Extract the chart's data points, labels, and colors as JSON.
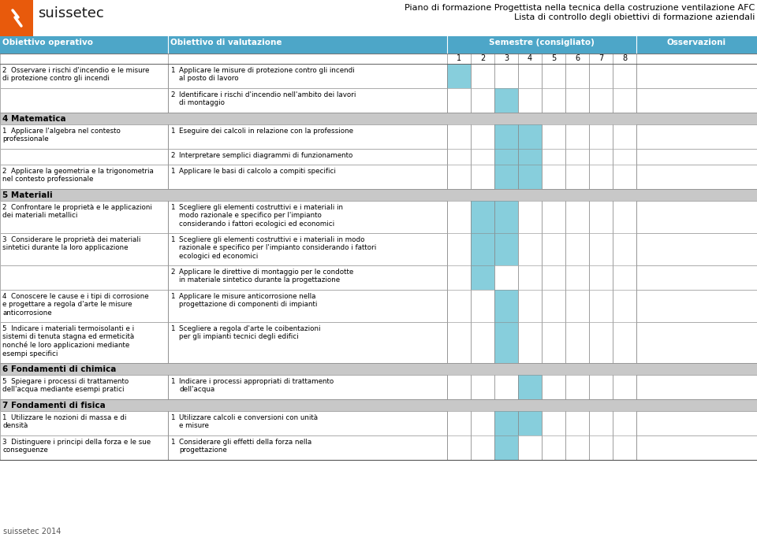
{
  "title_line1": "Piano di formazione Progettista nella tecnica della costruzione ventilazione AFC",
  "title_line2": "Lista di controllo degli obiettivi di formazione aziendali",
  "logo_text": "suissetec",
  "header_bg": "#4DA6C8",
  "section_bg": "#C8C8C8",
  "highlight_color": "#87CEDC",
  "white": "#FFFFFF",
  "footer_text": "suissetec 2014",
  "semester_nums": [
    "1",
    "2",
    "3",
    "4",
    "5",
    "6",
    "7",
    "8"
  ],
  "sections": [
    {
      "type": "row",
      "op_text": "2  Osservare i rischi d'incendio e le misure\ndi protezione contro gli incendi",
      "val_num": "1",
      "val_text": "Applicare le misure di protezione contro gli incendi\nal posto di lavoro",
      "highlighted_semesters": [
        1
      ],
      "n_lines": 2
    },
    {
      "type": "row",
      "op_text": "",
      "val_num": "2",
      "val_text": "Identificare i rischi d'incendio nell'ambito dei lavori\ndi montaggio",
      "highlighted_semesters": [
        3
      ],
      "n_lines": 2
    },
    {
      "type": "section_header",
      "text": "4 Matematica"
    },
    {
      "type": "row",
      "op_text": "1  Applicare l'algebra nel contesto\nprofessionale",
      "val_num": "1",
      "val_text": "Eseguire dei calcoli in relazione con la professione",
      "highlighted_semesters": [
        3,
        4
      ],
      "n_lines": 2
    },
    {
      "type": "row",
      "op_text": "",
      "val_num": "2",
      "val_text": "Interpretare semplici diagrammi di funzionamento",
      "highlighted_semesters": [
        3,
        4
      ],
      "n_lines": 1
    },
    {
      "type": "row",
      "op_text": "2  Applicare la geometria e la trigonometria\nnel contesto professionale",
      "val_num": "1",
      "val_text": "Applicare le basi di calcolo a compiti specifici",
      "highlighted_semesters": [
        3,
        4
      ],
      "n_lines": 2
    },
    {
      "type": "section_header",
      "text": "5 Materiali"
    },
    {
      "type": "row",
      "op_text": "2  Confrontare le proprietà e le applicazioni\ndei materiali metallici",
      "val_num": "1",
      "val_text": "Scegliere gli elementi costruttivi e i materiali in\nmodo razionale e specifico per l'impianto\nconsiderando i fattori ecologici ed economici",
      "highlighted_semesters": [
        2,
        3
      ],
      "n_lines": 3
    },
    {
      "type": "row",
      "op_text": "3  Considerare le proprietà dei materiali\nsintetici durante la loro applicazione",
      "val_num": "1",
      "val_text": "Scegliere gli elementi costruttivi e i materiali in modo\nrazionale e specifico per l'impianto considerando i fattori\necologici ed economici",
      "highlighted_semesters": [
        2,
        3
      ],
      "n_lines": 3
    },
    {
      "type": "row",
      "op_text": "",
      "val_num": "2",
      "val_text": "Applicare le direttive di montaggio per le condotte\nin materiale sintetico durante la progettazione",
      "highlighted_semesters": [
        2
      ],
      "n_lines": 2
    },
    {
      "type": "row",
      "op_text": "4  Conoscere le cause e i tipi di corrosione\ne progettare a regola d'arte le misure\nanticorrosione",
      "val_num": "1",
      "val_text": "Applicare le misure anticorrosione nella\nprogettazione di componenti di impianti",
      "highlighted_semesters": [
        3
      ],
      "n_lines": 3
    },
    {
      "type": "row",
      "op_text": "5  Indicare i materiali termoisolanti e i\nsistemi di tenuta stagna ed ermeticità\nnonché le loro applicazioni mediante\nesempi specifici",
      "val_num": "1",
      "val_text": "Scegliere a regola d'arte le coibentazioni\nper gli impianti tecnici degli edifici",
      "highlighted_semesters": [
        3
      ],
      "n_lines": 4
    },
    {
      "type": "section_header",
      "text": "6 Fondamenti di chimica"
    },
    {
      "type": "row",
      "op_text": "5  Spiegare i processi di trattamento\ndell'acqua mediante esempi pratici",
      "val_num": "1",
      "val_text": "Indicare i processi appropriati di trattamento\ndell'acqua",
      "highlighted_semesters": [
        4
      ],
      "n_lines": 2
    },
    {
      "type": "section_header",
      "text": "7 Fondamenti di fisica"
    },
    {
      "type": "row",
      "op_text": "1  Utilizzare le nozioni di massa e di\ndensità",
      "val_num": "1",
      "val_text": "Utilizzare calcoli e conversioni con unità\ne misure",
      "highlighted_semesters": [
        3,
        4
      ],
      "n_lines": 2
    },
    {
      "type": "row",
      "op_text": "3  Distinguere i principi della forza e le sue\nconseguenze",
      "val_num": "1",
      "val_text": "Considerare gli effetti della forza nella\nprogettazione",
      "highlighted_semesters": [
        3
      ],
      "n_lines": 2
    }
  ]
}
